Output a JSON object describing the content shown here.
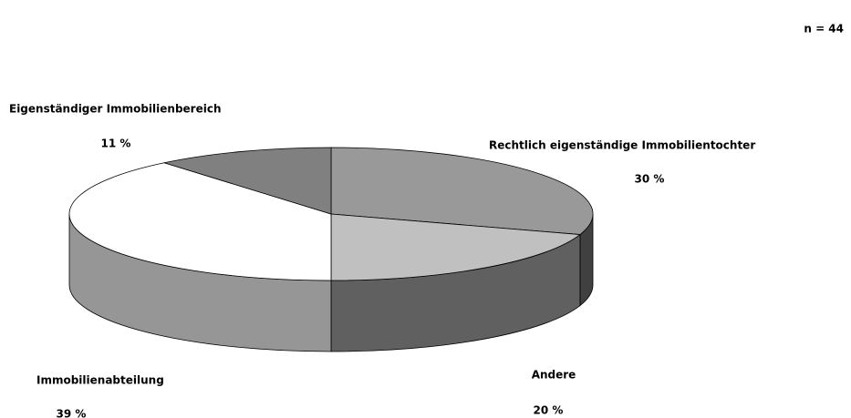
{
  "chart_data": {
    "type": "pie3d",
    "annotation": "n = 44",
    "categories": [
      "Rechtlich eigenständige Immobilientochter",
      "Andere",
      "Immobilienabteilung",
      "Eigenständiger Immobilienbereich"
    ],
    "values": [
      30,
      20,
      39,
      11
    ],
    "value_labels": [
      "30 %",
      "20 %",
      "39 %",
      "11 %"
    ],
    "colors": [
      "#999999",
      "#c0c0c0",
      "#ffffff",
      "#808080"
    ],
    "side_colors": [
      "#404040",
      "#606060",
      "#969696",
      "#505050"
    ]
  }
}
